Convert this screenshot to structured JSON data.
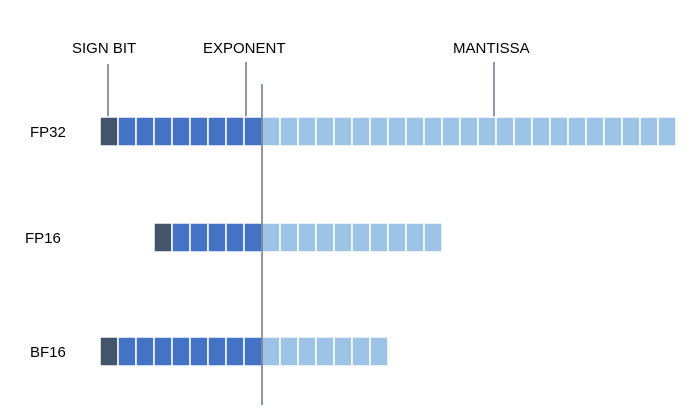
{
  "annotations": {
    "sign": "SIGN BIT",
    "exponent": "EXPONENT",
    "mantissa": "MANTISSA"
  },
  "colors": {
    "sign": "#44546a",
    "exponent": "#4472c4",
    "mantissa": "#9dc3e6",
    "cell_border": "#ffffff",
    "line": "#44546a"
  },
  "formats": [
    {
      "name": "FP32",
      "sign_bits": 1,
      "exponent_bits": 8,
      "mantissa_bits": 23
    },
    {
      "name": "FP16",
      "sign_bits": 1,
      "exponent_bits": 5,
      "mantissa_bits": 10
    },
    {
      "name": "BF16",
      "sign_bits": 1,
      "exponent_bits": 8,
      "mantissa_bits": 7
    }
  ]
}
